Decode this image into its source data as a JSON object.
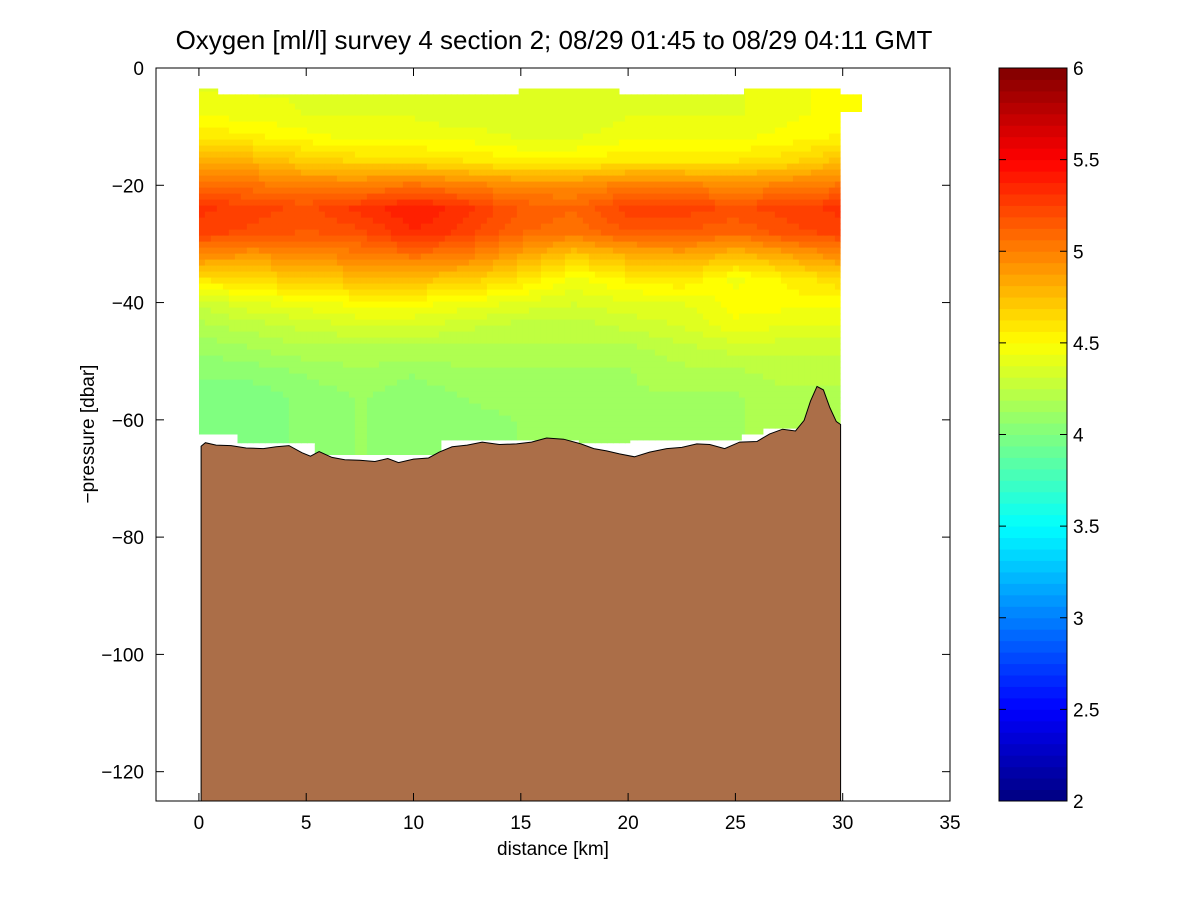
{
  "chart_data": {
    "type": "heatmap",
    "title": "Oxygen [ml/l] survey 4 section 2; 08/29 01:45 to 08/29 04:11 GMT",
    "xlabel": "distance [km]",
    "ylabel": "−pressure [dbar]",
    "xlim": [
      -2,
      35
    ],
    "ylim": [
      -125,
      0
    ],
    "xticks": [
      0,
      5,
      10,
      15,
      20,
      25,
      30,
      35
    ],
    "yticks": [
      0,
      -20,
      -40,
      -60,
      -80,
      -100,
      -120
    ],
    "xtick_labels": [
      "0",
      "5",
      "10",
      "15",
      "20",
      "25",
      "30",
      "35"
    ],
    "ytick_labels": [
      "0",
      "−20",
      "−40",
      "−60",
      "−80",
      "−100",
      "−120"
    ],
    "grid": false,
    "colorbar": {
      "colormap": "jet",
      "range": [
        2,
        6
      ],
      "ticks": [
        2,
        2.5,
        3,
        3.5,
        4,
        4.5,
        5,
        5.5,
        6
      ],
      "tick_labels": [
        "2",
        "2.5",
        "3",
        "3.5",
        "4",
        "4.5",
        "5",
        "5.5",
        "6"
      ]
    },
    "field": {
      "distance_km": [
        0,
        2.5,
        5,
        7.5,
        10,
        12.5,
        15,
        17.5,
        20,
        22.5,
        25,
        27.5,
        30
      ],
      "depth_dbar": [
        -4,
        -8,
        -12,
        -16,
        -20,
        -24,
        -28,
        -32,
        -36,
        -40,
        -44,
        -48,
        -52,
        -56,
        -60,
        -64
      ],
      "oxygen_ml_l": [
        [
          4.4,
          4.4,
          4.4,
          4.35,
          4.35,
          4.35,
          4.35,
          4.35,
          4.35,
          4.4,
          4.4,
          4.45,
          4.5
        ],
        [
          4.45,
          4.45,
          4.4,
          4.4,
          4.4,
          4.35,
          4.35,
          4.35,
          4.4,
          4.4,
          4.4,
          4.45,
          4.5
        ],
        [
          4.6,
          4.55,
          4.5,
          4.45,
          4.45,
          4.45,
          4.4,
          4.4,
          4.45,
          4.45,
          4.45,
          4.5,
          4.55
        ],
        [
          4.85,
          4.8,
          4.7,
          4.65,
          4.65,
          4.6,
          4.55,
          4.55,
          4.6,
          4.6,
          4.6,
          4.65,
          4.75
        ],
        [
          5.1,
          5.05,
          5.0,
          5.0,
          5.05,
          5.0,
          4.95,
          4.95,
          5.0,
          5.0,
          4.95,
          5.0,
          5.05
        ],
        [
          5.3,
          5.25,
          5.2,
          5.3,
          5.4,
          5.3,
          5.15,
          5.1,
          5.25,
          5.25,
          5.2,
          5.25,
          5.3
        ],
        [
          5.25,
          5.2,
          5.15,
          5.2,
          5.35,
          5.25,
          5.1,
          5.05,
          5.15,
          5.15,
          5.1,
          5.2,
          5.25
        ],
        [
          4.95,
          4.9,
          4.95,
          5.0,
          5.05,
          5.0,
          4.85,
          4.7,
          4.8,
          4.85,
          4.75,
          4.85,
          4.95
        ],
        [
          4.6,
          4.65,
          4.7,
          4.75,
          4.75,
          4.7,
          4.6,
          4.45,
          4.55,
          4.6,
          4.45,
          4.55,
          4.65
        ],
        [
          4.3,
          4.4,
          4.45,
          4.5,
          4.5,
          4.45,
          4.4,
          4.35,
          4.4,
          4.4,
          4.5,
          4.5,
          4.5
        ],
        [
          4.2,
          4.25,
          4.3,
          4.35,
          4.35,
          4.3,
          4.25,
          4.25,
          4.3,
          4.35,
          4.45,
          4.4,
          4.4
        ],
        [
          4.1,
          4.15,
          4.2,
          4.2,
          4.2,
          4.2,
          4.2,
          4.2,
          4.2,
          4.25,
          4.3,
          4.3,
          4.3
        ],
        [
          4.05,
          4.05,
          4.1,
          4.15,
          4.1,
          4.15,
          4.15,
          4.15,
          4.15,
          4.2,
          4.2,
          4.25,
          4.25
        ],
        [
          4.0,
          4.0,
          4.05,
          4.1,
          4.05,
          4.1,
          4.15,
          4.15,
          4.15,
          4.15,
          4.15,
          4.2,
          4.2
        ],
        [
          4.0,
          4.0,
          4.05,
          4.1,
          4.05,
          4.05,
          4.1,
          4.15,
          4.15,
          4.15,
          4.15,
          4.2,
          4.2
        ],
        [
          4.0,
          4.0,
          4.05,
          4.1,
          4.05,
          4.05,
          4.1,
          4.15,
          4.15,
          4.15,
          4.15,
          4.2,
          4.2
        ]
      ]
    },
    "data_coverage": {
      "surface_top_dbar": [
        [
          0,
          -3.5
        ],
        [
          0.9,
          -3.5
        ],
        [
          0.9,
          -4.5
        ],
        [
          14.9,
          -4.5
        ],
        [
          14.9,
          -3.5
        ],
        [
          19.6,
          -3.5
        ],
        [
          19.6,
          -4.5
        ],
        [
          25.4,
          -4.5
        ],
        [
          25.4,
          -3.5
        ],
        [
          29.9,
          -3.5
        ],
        [
          29.9,
          -4.5
        ],
        [
          30.9,
          -4.5
        ],
        [
          30.9,
          -7.5
        ],
        [
          29.9,
          -7.5
        ]
      ],
      "deepest_sample_dbar": [
        [
          0,
          -62.5
        ],
        [
          1.8,
          -62.5
        ],
        [
          1.8,
          -64
        ],
        [
          5.4,
          -64
        ],
        [
          5.4,
          -66
        ],
        [
          11.3,
          -66
        ],
        [
          11.3,
          -63.5
        ],
        [
          17.7,
          -63.5
        ],
        [
          17.7,
          -64
        ],
        [
          20.1,
          -64
        ],
        [
          20.1,
          -63.5
        ],
        [
          25.3,
          -63.5
        ],
        [
          25.3,
          -62.5
        ],
        [
          26.3,
          -62.5
        ],
        [
          26.3,
          -61.5
        ],
        [
          29.9,
          -61.5
        ],
        [
          29.9,
          -58.5
        ]
      ]
    },
    "bathymetry": {
      "label": "seafloor",
      "color": "#ab6e48",
      "distance_km": [
        0.1,
        0.3,
        0.8,
        1.5,
        2.2,
        3.0,
        3.6,
        4.2,
        4.8,
        5.2,
        5.6,
        6.2,
        6.8,
        7.5,
        8.2,
        8.8,
        9.3,
        10.0,
        10.7,
        11.2,
        11.8,
        12.5,
        13.2,
        14.0,
        14.8,
        15.5,
        16.2,
        17.0,
        17.8,
        18.4,
        19.0,
        19.6,
        20.3,
        21.0,
        21.8,
        22.5,
        23.2,
        23.8,
        24.5,
        25.2,
        26.0,
        26.6,
        27.2,
        27.8,
        28.2,
        28.5,
        28.8,
        29.1,
        29.4,
        29.7,
        29.9
      ],
      "depth_dbar": [
        -64.5,
        -63.9,
        -64.3,
        -64.4,
        -64.8,
        -64.9,
        -64.6,
        -64.4,
        -65.6,
        -66.2,
        -65.4,
        -66.4,
        -66.8,
        -66.9,
        -67.1,
        -66.6,
        -67.3,
        -66.7,
        -66.5,
        -65.5,
        -64.6,
        -64.3,
        -63.8,
        -64.2,
        -64.1,
        -63.8,
        -63.1,
        -63.3,
        -64.1,
        -64.9,
        -65.3,
        -65.8,
        -66.3,
        -65.5,
        -64.9,
        -64.7,
        -64.1,
        -64.2,
        -64.9,
        -63.8,
        -63.7,
        -62.4,
        -61.6,
        -61.9,
        -60.1,
        -56.8,
        -54.3,
        -54.9,
        -57.9,
        -60.3,
        -60.8
      ]
    }
  }
}
